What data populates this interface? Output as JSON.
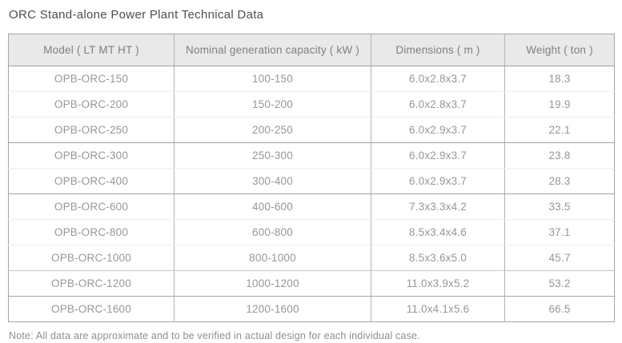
{
  "page": {
    "title": "ORC Stand-alone Power Plant Technical Data",
    "note": "Note: All data are approximate and to be verified in actual design for each individual case."
  },
  "table": {
    "columns": [
      "Model ( LT MT HT )",
      "Nominal generation capacity ( kW )",
      "Dimensions ( m )",
      "Weight ( ton )"
    ],
    "rows": [
      {
        "model": "OPB-ORC-150",
        "capacity": "100-150",
        "dimensions": "6.0x2.8x3.7",
        "weight": "18.3",
        "separator": "light"
      },
      {
        "model": "OPB-ORC-200",
        "capacity": "150-200",
        "dimensions": "6.0x2.8x3.7",
        "weight": "19.9",
        "separator": "light"
      },
      {
        "model": "OPB-ORC-250",
        "capacity": "200-250",
        "dimensions": "6.0x2.9x3.7",
        "weight": "22.1",
        "separator": "strong"
      },
      {
        "model": "OPB-ORC-300",
        "capacity": "250-300",
        "dimensions": "6.0x2.9x3.7",
        "weight": "23.8",
        "separator": "light"
      },
      {
        "model": "OPB-ORC-400",
        "capacity": "300-400",
        "dimensions": "6.0x2.9x3.7",
        "weight": "28.3",
        "separator": "strong"
      },
      {
        "model": "OPB-ORC-600",
        "capacity": "400-600",
        "dimensions": "7.3x3.3x4.2",
        "weight": "33.5",
        "separator": "light"
      },
      {
        "model": "OPB-ORC-800",
        "capacity": "600-800",
        "dimensions": "8.5x3.4x4.6",
        "weight": "37.1",
        "separator": "light"
      },
      {
        "model": "OPB-ORC-1000",
        "capacity": "800-1000",
        "dimensions": "8.5x3.6x5.0",
        "weight": "45.7",
        "separator": "medium"
      },
      {
        "model": "OPB-ORC-1200",
        "capacity": "1000-1200",
        "dimensions": "11.0x3.9x5.2",
        "weight": "53.2",
        "separator": "strong"
      },
      {
        "model": "OPB-ORC-1600",
        "capacity": "1200-1600",
        "dimensions": "11.0x4.1x5.6",
        "weight": "66.5",
        "separator": "none"
      }
    ]
  },
  "colors": {
    "header_background": "#e9e9e9",
    "outer_border": "#a5a5a5",
    "light_row_divider": "#ececec",
    "title_text": "#4f4f4f",
    "cell_text": "#979797"
  }
}
